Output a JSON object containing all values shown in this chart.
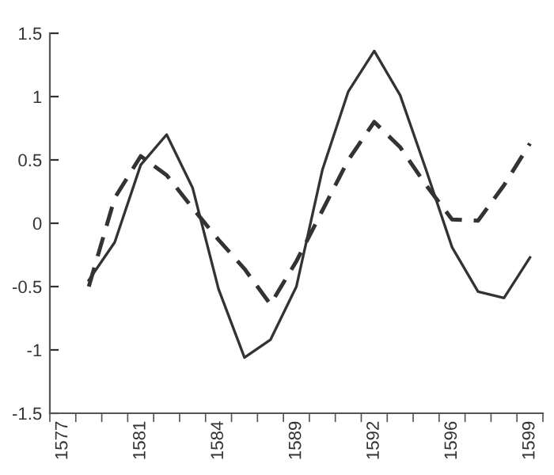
{
  "chart_data": {
    "type": "line",
    "categories": [
      "1577",
      null,
      null,
      "1581",
      null,
      null,
      "1584",
      null,
      null,
      "1589",
      null,
      null,
      "1592",
      null,
      null,
      "1596",
      null,
      null,
      "1599"
    ],
    "series": [
      {
        "color": "#333333",
        "line_style": "solid",
        "values": [
          null,
          -0.45,
          -0.15,
          0.46,
          0.7,
          0.28,
          -0.52,
          -1.06,
          -0.92,
          -0.5,
          0.42,
          1.04,
          1.36,
          1.01,
          0.42,
          -0.19,
          -0.54,
          -0.59,
          -0.27
        ]
      },
      {
        "color": "#333333",
        "line_style": "dashed",
        "values": [
          null,
          -0.5,
          0.2,
          0.53,
          0.38,
          0.12,
          -0.13,
          -0.36,
          -0.64,
          -0.3,
          0.1,
          0.5,
          0.8,
          0.6,
          0.3,
          0.03,
          0.02,
          0.3,
          0.63
        ]
      }
    ],
    "ylim": [
      -1.5,
      1.5
    ],
    "yticks": [
      -1.5,
      -1,
      -0.5,
      0,
      0.5,
      1,
      1.5
    ],
    "grid": false,
    "legend": false,
    "marker": "none"
  }
}
